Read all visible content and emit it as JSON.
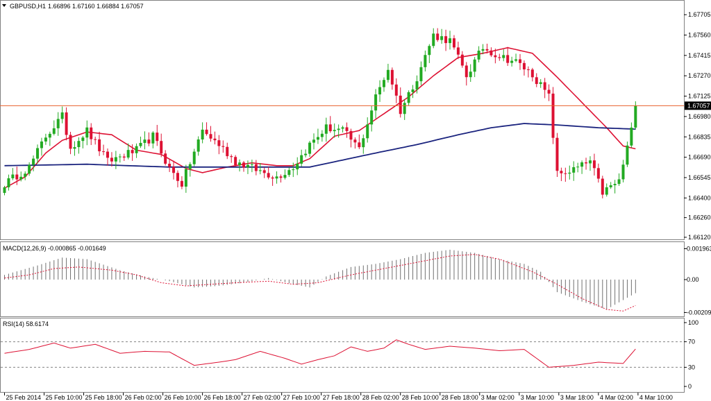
{
  "header": {
    "symbol": "GBPUSD,H1",
    "ohlc": "1.66896 1.67160 1.66884 1.67057"
  },
  "colors": {
    "bull": "#22aa22",
    "bear": "#dd1133",
    "ma_fast": "#dd1133",
    "ma_slow": "#1a237e",
    "price_line": "#e8612c",
    "price_tag_bg": "#000000",
    "macd_hist": "#707070",
    "macd_signal": "#dd1133",
    "rsi": "#dd1133",
    "grid": "#808080"
  },
  "chart_data": [
    {
      "type": "candlestick",
      "title": "GBPUSD,H1",
      "ylim": [
        1.6612,
        1.6778
      ],
      "y_ticks": [
        "1.67705",
        "1.67560",
        "1.67415",
        "1.67270",
        "1.67125",
        "1.66980",
        "1.66835",
        "1.66690",
        "1.66545",
        "1.66400",
        "1.66260",
        "1.66120"
      ],
      "y_tick_values": [
        1.67705,
        1.6756,
        1.67415,
        1.6727,
        1.67125,
        1.6698,
        1.66835,
        1.6669,
        1.66545,
        1.664,
        1.6626,
        1.6612
      ],
      "current_price": 1.67057,
      "current_price_label": "1.67057",
      "x_labels": [
        "25 Feb 2014",
        "25 Feb 10:00",
        "25 Feb 18:00",
        "26 Feb 02:00",
        "26 Feb 10:00",
        "26 Feb 18:00",
        "27 Feb 02:00",
        "27 Feb 10:00",
        "27 Feb 18:00",
        "28 Feb 02:00",
        "28 Feb 10:00",
        "28 Feb 18:00",
        "3 Mar 02:00",
        "3 Mar 10:00",
        "3 Mar 18:00",
        "4 Mar 02:00",
        "4 Mar 10:00"
      ],
      "anchors": [
        [
          0,
          1.665
        ],
        [
          6,
          1.6662
        ],
        [
          10,
          1.6684
        ],
        [
          14,
          1.6698
        ],
        [
          16,
          1.6676
        ],
        [
          20,
          1.6688
        ],
        [
          25,
          1.6666
        ],
        [
          32,
          1.6674
        ],
        [
          36,
          1.6684
        ],
        [
          40,
          1.6661
        ],
        [
          43,
          1.665
        ],
        [
          48,
          1.6688
        ],
        [
          52,
          1.6678
        ],
        [
          56,
          1.6666
        ],
        [
          62,
          1.6659
        ],
        [
          66,
          1.6655
        ],
        [
          70,
          1.6662
        ],
        [
          74,
          1.6678
        ],
        [
          78,
          1.669
        ],
        [
          82,
          1.6688
        ],
        [
          86,
          1.6675
        ],
        [
          90,
          1.6712
        ],
        [
          93,
          1.6732
        ],
        [
          96,
          1.6702
        ],
        [
          100,
          1.6726
        ],
        [
          104,
          1.6756
        ],
        [
          108,
          1.6752
        ],
        [
          112,
          1.6727
        ],
        [
          116,
          1.6747
        ],
        [
          120,
          1.6741
        ],
        [
          124,
          1.6737
        ],
        [
          128,
          1.6728
        ],
        [
          132,
          1.6712
        ],
        [
          134,
          1.6657
        ],
        [
          138,
          1.666
        ],
        [
          142,
          1.6666
        ],
        [
          145,
          1.6644
        ],
        [
          149,
          1.6652
        ],
        [
          152,
          1.6688
        ],
        [
          153,
          1.67057
        ]
      ],
      "ma_fast_anchors": [
        [
          0,
          1.6647
        ],
        [
          5,
          1.6655
        ],
        [
          10,
          1.6672
        ],
        [
          14,
          1.6681
        ],
        [
          20,
          1.6687
        ],
        [
          26,
          1.6685
        ],
        [
          32,
          1.6674
        ],
        [
          38,
          1.6671
        ],
        [
          44,
          1.6661
        ],
        [
          48,
          1.6658
        ],
        [
          54,
          1.6662
        ],
        [
          60,
          1.6665
        ],
        [
          66,
          1.6663
        ],
        [
          70,
          1.6663
        ],
        [
          74,
          1.6668
        ],
        [
          80,
          1.6684
        ],
        [
          86,
          1.6688
        ],
        [
          92,
          1.67
        ],
        [
          98,
          1.6712
        ],
        [
          104,
          1.6727
        ],
        [
          110,
          1.674
        ],
        [
          116,
          1.6743
        ],
        [
          122,
          1.6747
        ],
        [
          128,
          1.6743
        ],
        [
          134,
          1.6726
        ],
        [
          140,
          1.6708
        ],
        [
          146,
          1.669
        ],
        [
          150,
          1.6677
        ],
        [
          153,
          1.6675
        ]
      ],
      "ma_slow_anchors": [
        [
          0,
          1.6663
        ],
        [
          20,
          1.6664
        ],
        [
          40,
          1.6662
        ],
        [
          60,
          1.6662
        ],
        [
          74,
          1.6662
        ],
        [
          90,
          1.6672
        ],
        [
          100,
          1.6678
        ],
        [
          110,
          1.6685
        ],
        [
          118,
          1.669
        ],
        [
          126,
          1.6693
        ],
        [
          134,
          1.6692
        ],
        [
          144,
          1.669
        ],
        [
          153,
          1.6689
        ]
      ]
    },
    {
      "type": "bar",
      "title": "MACD(12,26,9) -0.000865 -0.001649",
      "y_ticks": [
        "0.001963",
        "0.00",
        "-0.002092"
      ],
      "y_tick_values": [
        0.001963,
        0.0,
        -0.002092
      ],
      "ylim": [
        -0.00225,
        0.00225
      ],
      "hist_anchors": [
        [
          0,
          0.0003
        ],
        [
          8,
          0.0009
        ],
        [
          14,
          0.0014
        ],
        [
          20,
          0.0013
        ],
        [
          28,
          0.0006
        ],
        [
          34,
          0.0002
        ],
        [
          40,
          -0.0001
        ],
        [
          46,
          -0.0005
        ],
        [
          52,
          -0.0004
        ],
        [
          58,
          -0.0002
        ],
        [
          64,
          0.0001
        ],
        [
          70,
          -0.0003
        ],
        [
          74,
          -0.0005
        ],
        [
          78,
          0.0002
        ],
        [
          84,
          0.0008
        ],
        [
          90,
          0.001
        ],
        [
          96,
          0.0013
        ],
        [
          102,
          0.0017
        ],
        [
          108,
          0.0019
        ],
        [
          114,
          0.0017
        ],
        [
          120,
          0.0013
        ],
        [
          126,
          0.001
        ],
        [
          130,
          0.0005
        ],
        [
          134,
          -0.0008
        ],
        [
          140,
          -0.0014
        ],
        [
          146,
          -0.0019
        ],
        [
          150,
          -0.0013
        ],
        [
          153,
          -0.000865
        ]
      ],
      "signal_anchors": [
        [
          0,
          0.0001
        ],
        [
          6,
          0.0003
        ],
        [
          12,
          0.0007
        ],
        [
          18,
          0.0008
        ],
        [
          26,
          0.0006
        ],
        [
          32,
          0.0003
        ],
        [
          38,
          -0.0002
        ],
        [
          44,
          -0.0004
        ],
        [
          50,
          -0.0003
        ],
        [
          56,
          -0.0002
        ],
        [
          64,
          -0.0001
        ],
        [
          70,
          -0.0003
        ],
        [
          76,
          -0.0002
        ],
        [
          84,
          0.0003
        ],
        [
          92,
          0.0007
        ],
        [
          100,
          0.0011
        ],
        [
          108,
          0.0015
        ],
        [
          114,
          0.0016
        ],
        [
          120,
          0.0013
        ],
        [
          128,
          0.0005
        ],
        [
          134,
          -0.0003
        ],
        [
          140,
          -0.0012
        ],
        [
          146,
          -0.0019
        ],
        [
          150,
          -0.002
        ],
        [
          153,
          -0.001649
        ]
      ]
    },
    {
      "type": "line",
      "title": "RSI(14) 58.6174",
      "y_ticks": [
        "100",
        "70",
        "30",
        "0"
      ],
      "y_tick_values": [
        100,
        70,
        30,
        0
      ],
      "ylim": [
        0,
        100
      ],
      "levels": [
        70,
        30
      ],
      "rsi_anchors": [
        [
          0,
          52
        ],
        [
          6,
          58
        ],
        [
          12,
          68
        ],
        [
          16,
          60
        ],
        [
          22,
          66
        ],
        [
          28,
          52
        ],
        [
          34,
          55
        ],
        [
          40,
          54
        ],
        [
          46,
          33
        ],
        [
          52,
          38
        ],
        [
          56,
          42
        ],
        [
          62,
          55
        ],
        [
          68,
          44
        ],
        [
          72,
          35
        ],
        [
          76,
          42
        ],
        [
          80,
          48
        ],
        [
          84,
          62
        ],
        [
          88,
          55
        ],
        [
          92,
          60
        ],
        [
          95,
          73
        ],
        [
          98,
          66
        ],
        [
          102,
          58
        ],
        [
          108,
          63
        ],
        [
          114,
          60
        ],
        [
          120,
          56
        ],
        [
          126,
          58
        ],
        [
          132,
          30
        ],
        [
          138,
          33
        ],
        [
          144,
          38
        ],
        [
          150,
          36
        ],
        [
          153,
          58.6174
        ]
      ]
    }
  ]
}
